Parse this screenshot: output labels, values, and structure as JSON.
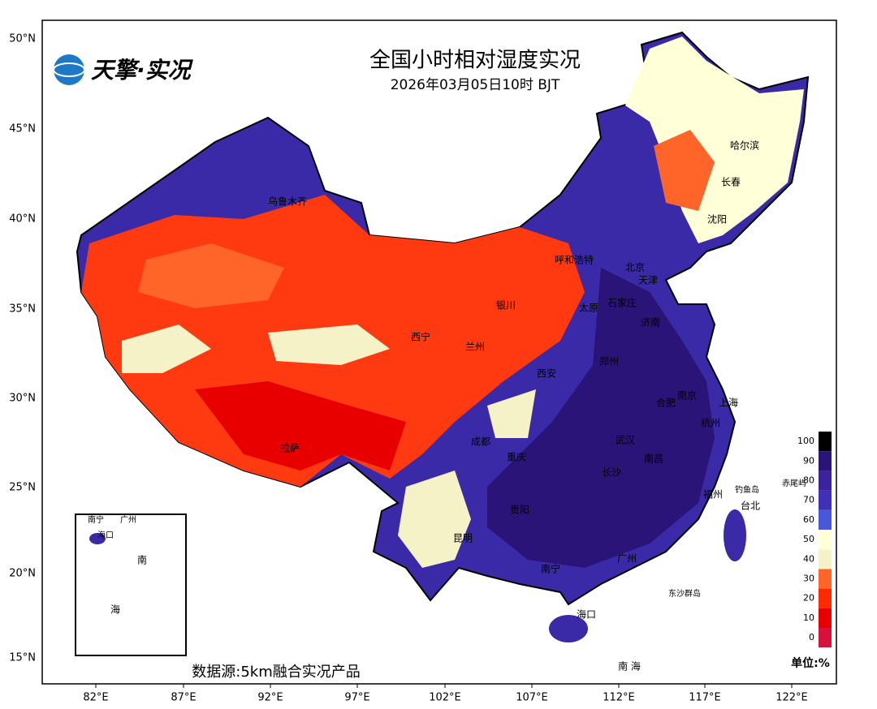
{
  "header": {
    "logo": "天擎·实况",
    "title": "全国小时相对湿度实况",
    "subtitle": "2026年03月05日10时 BJT"
  },
  "footer": {
    "source": "数据源:5km融合实况产品",
    "unit": "单位:%"
  },
  "axes": {
    "lat_labels": [
      "50°N",
      "45°N",
      "40°N",
      "35°N",
      "30°N",
      "25°N",
      "20°N",
      "15°N"
    ],
    "lon_labels": [
      "82°E",
      "87°E",
      "92°E",
      "97°E",
      "102°E",
      "107°E",
      "112°E",
      "117°E",
      "122°E"
    ]
  },
  "cities": [
    "乌鲁木齐",
    "哈尔滨",
    "长春",
    "沈阳",
    "呼和浩特",
    "北京",
    "天津",
    "银川",
    "太原",
    "石家庄",
    "济南",
    "西宁",
    "兰州",
    "郑州",
    "西安",
    "南京",
    "合肥",
    "上海",
    "杭州",
    "成都",
    "武汉",
    "重庆",
    "长沙",
    "南昌",
    "拉萨",
    "福州",
    "台北",
    "贵阳",
    "昆明",
    "南宁",
    "广州",
    "海口"
  ],
  "islands": [
    "钓鱼岛",
    "赤尾屿",
    "东沙群岛",
    "南 海"
  ],
  "inset": {
    "labels": [
      "南宁",
      "广州",
      "海口",
      "南",
      "海"
    ]
  },
  "colorbar": {
    "ticks": [
      0,
      10,
      20,
      30,
      40,
      50,
      60,
      70,
      80,
      90,
      100
    ],
    "colors": [
      "#d8103c",
      "#e80000",
      "#ff2a00",
      "#ff6428",
      "#f6f2c8",
      "#ffffd8",
      "#4858d8",
      "#4030b8",
      "#3c229c",
      "#2a1478",
      "#000000"
    ]
  }
}
